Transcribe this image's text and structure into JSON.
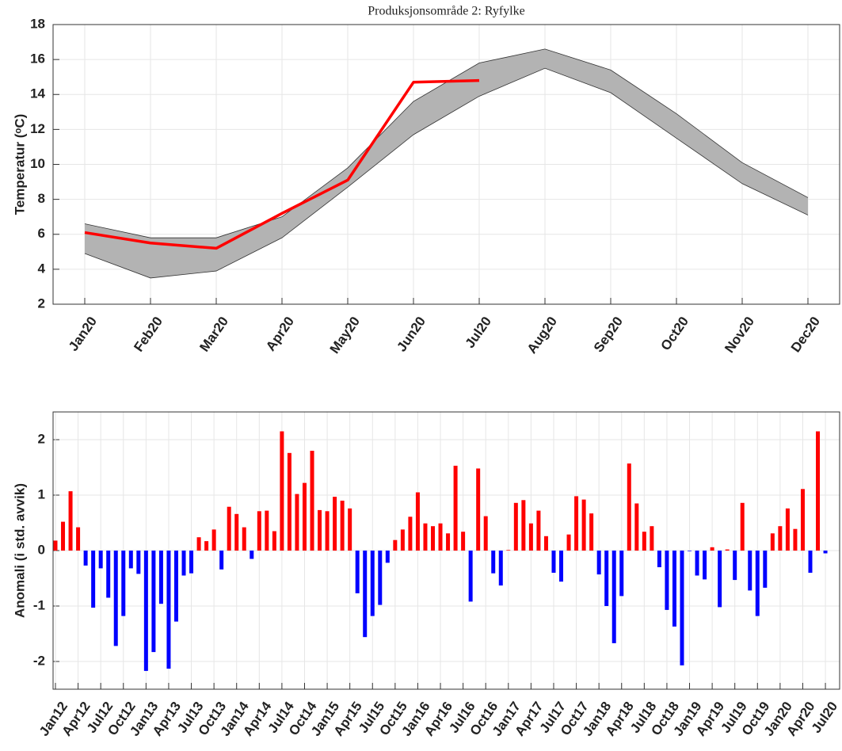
{
  "chart_data": [
    {
      "type": "band-line",
      "title": "Produksjonsområde 2: Ryfylke",
      "ylabel": "Temperatur (ᵒC)",
      "categories": [
        "Jan20",
        "Feb20",
        "Mar20",
        "Apr20",
        "May20",
        "Jun20",
        "Jul20",
        "Aug20",
        "Sep20",
        "Oct20",
        "Nov20",
        "Dec20"
      ],
      "band": {
        "color": "#b3b3b3",
        "edge_color": "#333333",
        "upper": [
          6.6,
          5.8,
          5.8,
          7.0,
          9.8,
          13.6,
          15.8,
          16.6,
          15.4,
          12.9,
          10.1,
          8.1
        ],
        "lower": [
          4.9,
          3.5,
          3.9,
          5.8,
          8.7,
          11.7,
          13.9,
          15.5,
          14.1,
          11.5,
          8.9,
          7.1
        ]
      },
      "series": [
        {
          "color": "#ff0000",
          "values": [
            6.1,
            5.5,
            5.2,
            7.2,
            9.1,
            14.7,
            14.8,
            null,
            null,
            null,
            null,
            null
          ]
        }
      ],
      "ylim": [
        2,
        18
      ],
      "yticks": [
        2,
        4,
        6,
        8,
        10,
        12,
        14,
        16,
        18
      ],
      "grid": true
    },
    {
      "type": "bar",
      "ylabel": "Anomali (i std. avvik)",
      "categories": [
        "Jan12",
        null,
        null,
        "Apr12",
        null,
        null,
        "Jul12",
        null,
        null,
        "Oct12",
        null,
        null,
        "Jan13",
        null,
        null,
        "Apr13",
        null,
        null,
        "Jul13",
        null,
        null,
        "Oct13",
        null,
        null,
        "Jan14",
        null,
        null,
        "Apr14",
        null,
        null,
        "Jul14",
        null,
        null,
        "Oct14",
        null,
        null,
        "Jan15",
        null,
        null,
        "Apr15",
        null,
        null,
        "Jul15",
        null,
        null,
        "Oct15",
        null,
        null,
        "Jan16",
        null,
        null,
        "Apr16",
        null,
        null,
        "Jul16",
        null,
        null,
        "Oct16",
        null,
        null,
        "Jan17",
        null,
        null,
        "Apr17",
        null,
        null,
        "Jul17",
        null,
        null,
        "Oct17",
        null,
        null,
        "Jan18",
        null,
        null,
        "Apr18",
        null,
        null,
        "Jul18",
        null,
        null,
        "Oct18",
        null,
        null,
        "Jan19",
        null,
        null,
        "Apr19",
        null,
        null,
        "Jul19",
        null,
        null,
        "Oct19",
        null,
        null,
        "Jan20",
        null,
        null,
        "Apr20",
        null,
        null,
        "Jul20"
      ],
      "values": [
        0.18,
        0.52,
        1.07,
        0.42,
        -0.27,
        -1.03,
        -0.32,
        -0.85,
        -1.72,
        -1.18,
        -0.32,
        -0.42,
        -2.17,
        -1.83,
        -0.96,
        -2.13,
        -1.28,
        -0.45,
        -0.41,
        0.24,
        0.17,
        0.38,
        -0.34,
        0.79,
        0.66,
        0.42,
        -0.15,
        0.71,
        0.72,
        0.35,
        2.15,
        1.76,
        1.02,
        1.22,
        1.8,
        0.73,
        0.71,
        0.97,
        0.9,
        0.76,
        -0.77,
        -1.56,
        -1.18,
        -0.98,
        -0.22,
        0.19,
        0.38,
        0.61,
        1.05,
        0.49,
        0.44,
        0.49,
        0.31,
        1.53,
        0.34,
        -0.92,
        1.48,
        0.62,
        -0.41,
        -0.63,
        0.01,
        0.86,
        0.91,
        0.49,
        0.72,
        0.26,
        -0.4,
        -0.56,
        0.29,
        0.98,
        0.92,
        0.67,
        -0.43,
        -1.0,
        -1.67,
        -0.82,
        1.57,
        0.85,
        0.34,
        0.44,
        -0.3,
        -1.07,
        -1.37,
        -2.07,
        -0.01,
        -0.45,
        -0.52,
        0.06,
        -1.02,
        0.02,
        -0.53,
        0.86,
        -0.72,
        -1.18,
        -0.67,
        0.31,
        0.44,
        0.76,
        0.39,
        1.11,
        -0.4,
        2.15,
        -0.05
      ],
      "positive_color": "#ff0000",
      "negative_color": "#0000ff",
      "ylim": [
        -2.5,
        2.5
      ],
      "yticks": [
        -2,
        -1,
        0,
        1,
        2
      ],
      "grid": true
    }
  ]
}
